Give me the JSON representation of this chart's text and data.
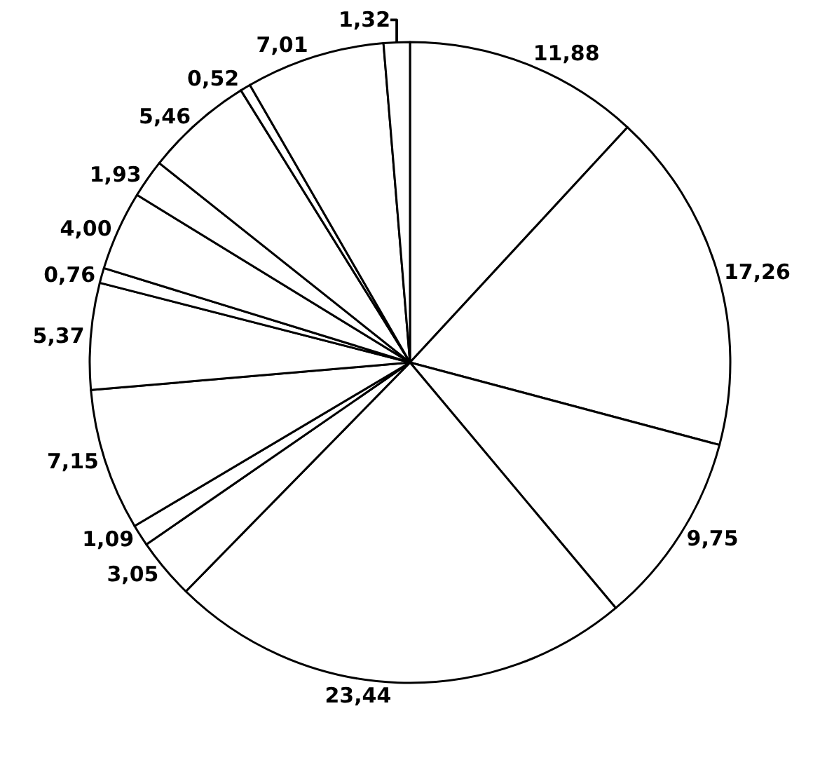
{
  "chart_data": {
    "type": "pie",
    "categories": [
      null,
      null,
      null,
      null,
      null,
      null,
      null,
      null,
      null,
      null,
      null,
      null,
      null,
      null,
      null
    ],
    "values": [
      11.88,
      17.26,
      9.75,
      23.44,
      3.05,
      1.09,
      7.15,
      5.37,
      0.76,
      4.0,
      1.93,
      5.46,
      0.52,
      7.01,
      1.32
    ],
    "value_labels": [
      "11,88",
      "17,26",
      "9,75",
      "23,44",
      "3,05",
      "1,09",
      "7,15",
      "5,37",
      "0,76",
      "4,00",
      "1,93",
      "5,46",
      "0,52",
      "7,01",
      "1,32"
    ],
    "colors": [
      "#ffffff",
      "#ffffff",
      "#ffffff",
      "#ffffff",
      "#ffffff",
      "#ffffff",
      "#ffffff",
      "#ffffff",
      "#ffffff",
      "#ffffff",
      "#ffffff",
      "#ffffff",
      "#ffffff",
      "#ffffff",
      "#ffffff"
    ],
    "legend": false
  }
}
